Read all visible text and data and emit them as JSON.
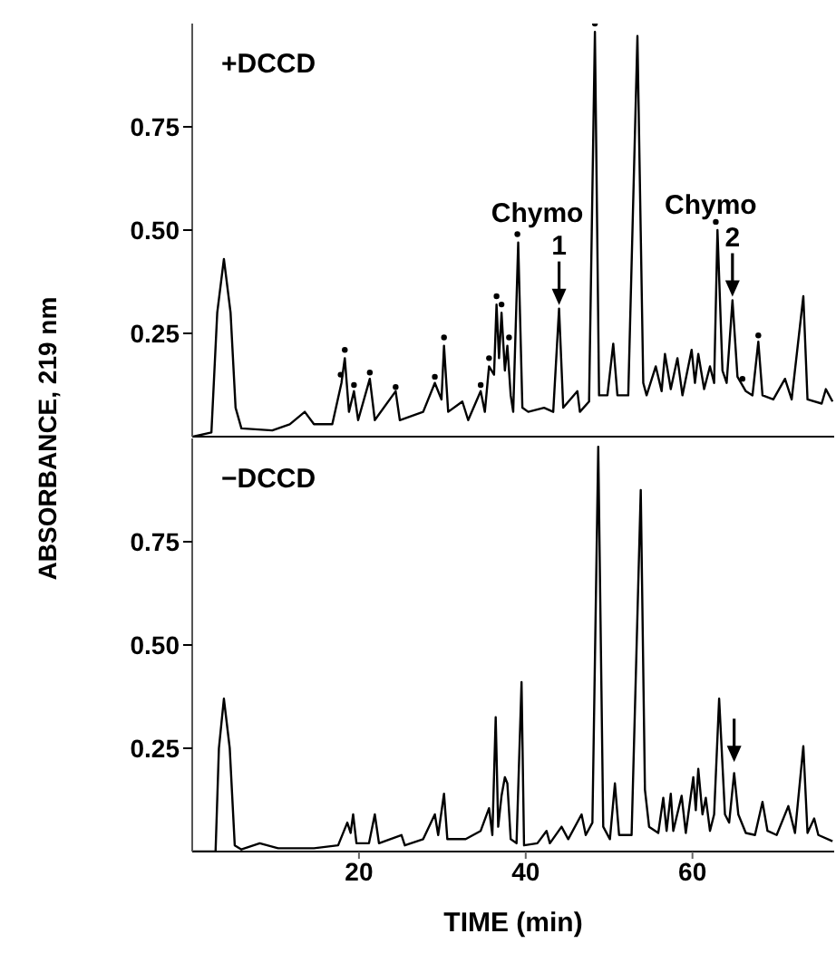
{
  "chart_data": [
    {
      "type": "line",
      "ylabel": "ABSORBANCE, 219 nm",
      "xlim": [
        0,
        77
      ],
      "ylim": [
        0,
        1
      ],
      "yticks": [
        {
          "value": 0.25,
          "label": "0.25"
        },
        {
          "value": 0.5,
          "label": "0.50"
        },
        {
          "value": 0.75,
          "label": "0.75"
        }
      ],
      "tick_labels": "y",
      "annotations": [
        "+DCCD",
        {
          "text": "Chymo 1",
          "x": 44.0,
          "y": 0.31
        },
        {
          "text": "Chymo 2",
          "x": 64.8,
          "y": 0.33
        }
      ],
      "series": [
        {
          "color": "#000000",
          "x": [
            0.1,
            2.3,
            3.0,
            3.8,
            4.6,
            5.2,
            5.9,
            9.6,
            11.7,
            13.5,
            14.6,
            16.8,
            17.9,
            18.3,
            18.8,
            19.4,
            19.9,
            21.3,
            21.9,
            24.4,
            24.9,
            27.7,
            29.1,
            29.9,
            30.2,
            30.7,
            32.4,
            33.1,
            34.6,
            35.1,
            35.6,
            36.2,
            36.5,
            36.8,
            37.1,
            37.5,
            37.8,
            38.2,
            38.5,
            39.1,
            39.6,
            40.3,
            42.2,
            43.3,
            44.0,
            44.5,
            46.2,
            46.5,
            47.6,
            48.3,
            48.8,
            49.8,
            50.5,
            51.0,
            52.3,
            53.4,
            54.1,
            54.5,
            55.6,
            56.3,
            56.7,
            57.4,
            58.2,
            58.8,
            59.9,
            60.3,
            60.7,
            61.4,
            62.1,
            62.6,
            63.0,
            63.6,
            64.1,
            64.8,
            65.4,
            66.4,
            67.2,
            67.9,
            68.4,
            69.7,
            71.1,
            71.9,
            73.3,
            73.8,
            75.5,
            76.0,
            76.8
          ],
          "values": [
            0,
            0.01,
            0.3,
            0.43,
            0.3,
            0.07,
            0.02,
            0.015,
            0.03,
            0.06,
            0.03,
            0.03,
            0.13,
            0.19,
            0.06,
            0.11,
            0.04,
            0.14,
            0.04,
            0.11,
            0.04,
            0.06,
            0.13,
            0.09,
            0.22,
            0.06,
            0.085,
            0.04,
            0.11,
            0.06,
            0.17,
            0.15,
            0.32,
            0.19,
            0.3,
            0.16,
            0.22,
            0.1,
            0.06,
            0.47,
            0.07,
            0.06,
            0.07,
            0.06,
            0.31,
            0.07,
            0.11,
            0.06,
            0.085,
            0.98,
            0.1,
            0.1,
            0.225,
            0.1,
            0.1,
            0.97,
            0.13,
            0.1,
            0.17,
            0.11,
            0.2,
            0.115,
            0.19,
            0.1,
            0.21,
            0.13,
            0.2,
            0.115,
            0.17,
            0.13,
            0.5,
            0.16,
            0.13,
            0.33,
            0.145,
            0.11,
            0.1,
            0.23,
            0.1,
            0.09,
            0.14,
            0.09,
            0.34,
            0.09,
            0.08,
            0.115,
            0.085
          ]
        },
        {
          "type": "scatter",
          "marker": "circle",
          "color": "#000000",
          "x": [
            17.8,
            18.3,
            19.4,
            21.3,
            24.4,
            29.1,
            30.2,
            34.6,
            35.6,
            36.5,
            37.1,
            38.0,
            39.0,
            48.3,
            62.8,
            66.0,
            67.9
          ],
          "values": [
            0.15,
            0.21,
            0.125,
            0.155,
            0.12,
            0.145,
            0.24,
            0.125,
            0.19,
            0.34,
            0.32,
            0.24,
            0.49,
            1.0,
            0.52,
            0.14,
            0.245
          ]
        }
      ]
    },
    {
      "type": "line",
      "xlabel": "TIME (min)",
      "xlim": [
        0,
        77
      ],
      "xticks": [
        20,
        40,
        60
      ],
      "ylim": [
        0,
        1
      ],
      "yticks": [
        {
          "value": 0.25,
          "label": "0.25"
        },
        {
          "value": 0.5,
          "label": "0.50"
        },
        {
          "value": 0.75,
          "label": "0.75"
        }
      ],
      "annotations": [
        "−DCCD"
      ],
      "series": [
        {
          "color": "#000000",
          "x": [
            0.1,
            2.8,
            3.2,
            3.8,
            4.5,
            5.1,
            5.9,
            8.1,
            10.3,
            14.6,
            17.5,
            18.6,
            19.0,
            19.3,
            19.7,
            21.2,
            21.9,
            22.4,
            25.1,
            25.5,
            27.7,
            29.1,
            29.5,
            30.2,
            30.6,
            32.8,
            34.6,
            35.6,
            36.0,
            36.4,
            36.7,
            37.1,
            37.5,
            37.8,
            38.2,
            38.9,
            39.5,
            39.8,
            41.4,
            42.5,
            42.9,
            44.3,
            45.1,
            46.7,
            47.2,
            48.0,
            48.7,
            49.3,
            50.1,
            50.7,
            51.2,
            52.7,
            53.8,
            54.3,
            54.8,
            55.9,
            56.5,
            56.9,
            57.4,
            57.7,
            58.7,
            59.2,
            60.1,
            60.4,
            60.7,
            61.2,
            61.6,
            62.1,
            62.6,
            63.2,
            63.9,
            64.4,
            65.0,
            65.5,
            66.4,
            67.5,
            68.4,
            69.0,
            70.1,
            71.5,
            72.3,
            73.3,
            73.8,
            74.6,
            75.1,
            76.8
          ],
          "values": [
            0,
            0,
            0.25,
            0.37,
            0.25,
            0.015,
            0.005,
            0.02,
            0.008,
            0.008,
            0.015,
            0.07,
            0.045,
            0.09,
            0.02,
            0.02,
            0.09,
            0.02,
            0.04,
            0.015,
            0.03,
            0.09,
            0.04,
            0.14,
            0.03,
            0.03,
            0.05,
            0.105,
            0.04,
            0.325,
            0.06,
            0.135,
            0.18,
            0.165,
            0.03,
            0.02,
            0.41,
            0.015,
            0.02,
            0.05,
            0.02,
            0.06,
            0.03,
            0.09,
            0.04,
            0.07,
            0.98,
            0.06,
            0.03,
            0.165,
            0.04,
            0.04,
            0.875,
            0.15,
            0.06,
            0.045,
            0.13,
            0.05,
            0.14,
            0.05,
            0.135,
            0.045,
            0.18,
            0.1,
            0.2,
            0.09,
            0.13,
            0.05,
            0.09,
            0.37,
            0.09,
            0.07,
            0.19,
            0.09,
            0.045,
            0.04,
            0.12,
            0.05,
            0.04,
            0.11,
            0.045,
            0.255,
            0.045,
            0.08,
            0.04,
            0.025
          ]
        }
      ]
    }
  ]
}
